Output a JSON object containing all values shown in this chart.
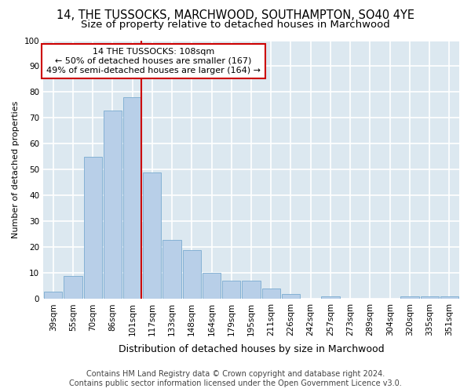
{
  "title": "14, THE TUSSOCKS, MARCHWOOD, SOUTHAMPTON, SO40 4YE",
  "subtitle": "Size of property relative to detached houses in Marchwood",
  "xlabel": "Distribution of detached houses by size in Marchwood",
  "ylabel": "Number of detached properties",
  "categories": [
    "39sqm",
    "55sqm",
    "70sqm",
    "86sqm",
    "101sqm",
    "117sqm",
    "133sqm",
    "148sqm",
    "164sqm",
    "179sqm",
    "195sqm",
    "211sqm",
    "226sqm",
    "242sqm",
    "257sqm",
    "273sqm",
    "289sqm",
    "304sqm",
    "320sqm",
    "335sqm",
    "351sqm"
  ],
  "values": [
    3,
    9,
    55,
    73,
    78,
    49,
    23,
    19,
    10,
    7,
    7,
    4,
    2,
    0,
    1,
    0,
    0,
    0,
    1,
    1,
    1
  ],
  "bar_color": "#b8cfe8",
  "bar_edge_color": "#7aaad0",
  "figure_bg": "#ffffff",
  "axes_bg": "#dce8f0",
  "grid_color": "#ffffff",
  "annotation_text_line1": "14 THE TUSSOCKS: 108sqm",
  "annotation_text_line2": "← 50% of detached houses are smaller (167)",
  "annotation_text_line3": "49% of semi-detached houses are larger (164) →",
  "annotation_box_color": "#ffffff",
  "annotation_box_edge_color": "#cc0000",
  "vline_color": "#cc0000",
  "vline_x_index": 4.44,
  "ylim": [
    0,
    100
  ],
  "yticks": [
    0,
    10,
    20,
    30,
    40,
    50,
    60,
    70,
    80,
    90,
    100
  ],
  "footer1": "Contains HM Land Registry data © Crown copyright and database right 2024.",
  "footer2": "Contains public sector information licensed under the Open Government Licence v3.0.",
  "title_fontsize": 10.5,
  "subtitle_fontsize": 9.5,
  "xlabel_fontsize": 9,
  "ylabel_fontsize": 8,
  "tick_fontsize": 7.5,
  "annot_fontsize": 8,
  "footer_fontsize": 7
}
